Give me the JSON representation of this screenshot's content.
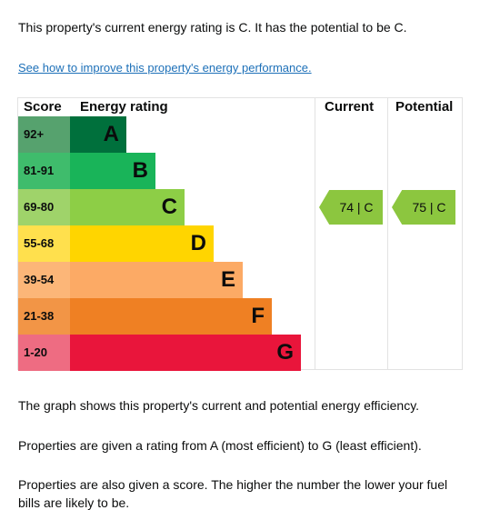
{
  "intro_text": "This property's current energy rating is C. It has the potential to be C.",
  "improve_link": "See how to improve this property's energy performance.",
  "chart": {
    "headers": {
      "score": "Score",
      "rating": "Energy rating",
      "current": "Current",
      "potential": "Potential"
    },
    "rows": [
      {
        "score": "92+",
        "letter": "A",
        "bar_color": "#00703c",
        "score_bg": "#56a26e"
      },
      {
        "score": "81-91",
        "letter": "B",
        "bar_color": "#19b459",
        "score_bg": "#3fbc6c"
      },
      {
        "score": "69-80",
        "letter": "C",
        "bar_color": "#8dce46",
        "score_bg": "#9fd36a"
      },
      {
        "score": "55-68",
        "letter": "D",
        "bar_color": "#ffd500",
        "score_bg": "#ffe04d"
      },
      {
        "score": "39-54",
        "letter": "E",
        "bar_color": "#fcaa65",
        "score_bg": "#fcb678"
      },
      {
        "score": "21-38",
        "letter": "F",
        "bar_color": "#ef8023",
        "score_bg": "#f29546"
      },
      {
        "score": "1-20",
        "letter": "G",
        "bar_color": "#e9153b",
        "score_bg": "#ee6c82"
      }
    ],
    "current": {
      "label": "74 | C",
      "score": 74,
      "band": "C"
    },
    "potential": {
      "label": "75 | C",
      "score": 75,
      "band": "C"
    }
  },
  "paragraphs": [
    "The graph shows this property's current and potential energy efficiency.",
    "Properties are given a rating from A (most efficient) to G (least efficient).",
    "Properties are also given a score. The higher the number the lower your fuel",
    "bills are likely to be."
  ]
}
